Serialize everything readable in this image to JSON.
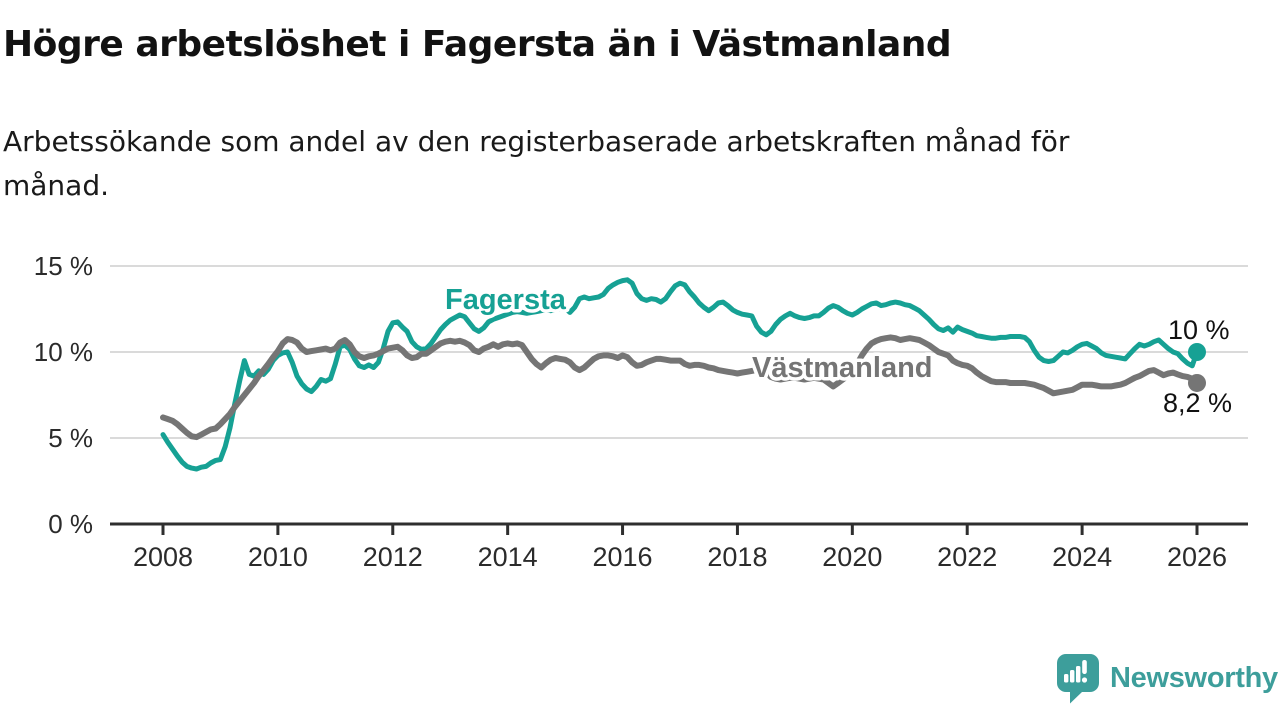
{
  "title": "Högre arbetslöshet i Fagersta än i Västmanland",
  "subtitle": {
    "line1": "Arbetssökande som andel av den registerbaserade arbetskraften månad för",
    "line2": "månad."
  },
  "footer": {
    "brand": "Newsworthy"
  },
  "colors": {
    "fagersta": "#16A194",
    "vastmanland": "#757575",
    "grid": "#DADADA",
    "axis": "#2F2F2F",
    "tick_text": "#2b2b2b",
    "logo": "#3D9E9B",
    "text": "#1a1a1a"
  },
  "chart_data": {
    "type": "line",
    "title": "Högre arbetslöshet i Fagersta än i Västmanland",
    "subtitle": "Arbetssökande som andel av den registerbaserade arbetskraften månad för månad.",
    "xlabel": "",
    "ylabel": "",
    "unit": "%",
    "x_range": [
      2008,
      2026
    ],
    "ylim": [
      0,
      15
    ],
    "grid": "horizontal",
    "legend_position": "inline-labels",
    "y_ticks": [
      {
        "value": 0,
        "label": "0 %"
      },
      {
        "value": 5,
        "label": "5 %"
      },
      {
        "value": 10,
        "label": "10 %"
      },
      {
        "value": 15,
        "label": "15 %"
      }
    ],
    "x_ticks": [
      {
        "value": 2008,
        "label": "2008"
      },
      {
        "value": 2010,
        "label": "2010"
      },
      {
        "value": 2012,
        "label": "2012"
      },
      {
        "value": 2014,
        "label": "2014"
      },
      {
        "value": 2016,
        "label": "2016"
      },
      {
        "value": 2018,
        "label": "2018"
      },
      {
        "value": 2020,
        "label": "2020"
      },
      {
        "value": 2022,
        "label": "2022"
      },
      {
        "value": 2024,
        "label": "2024"
      },
      {
        "value": 2026,
        "label": "2026"
      }
    ],
    "series": [
      {
        "name": "Fagersta",
        "color": "#16A194",
        "end_label": "10 %",
        "end_value": 10.0,
        "x_start": 2008,
        "points_per_year": 12,
        "values": [
          5.2,
          4.75,
          4.35,
          3.95,
          3.6,
          3.35,
          3.25,
          3.2,
          3.3,
          3.35,
          3.55,
          3.7,
          3.75,
          4.5,
          5.6,
          7.0,
          8.3,
          9.5,
          8.7,
          8.6,
          8.9,
          8.7,
          9.0,
          9.5,
          9.8,
          9.95,
          10.0,
          9.4,
          8.6,
          8.15,
          7.85,
          7.7,
          8.0,
          8.4,
          8.3,
          8.45,
          9.3,
          10.3,
          10.4,
          10.15,
          9.6,
          9.2,
          9.1,
          9.25,
          9.1,
          9.4,
          10.2,
          11.2,
          11.7,
          11.75,
          11.45,
          11.2,
          10.6,
          10.3,
          10.15,
          10.2,
          10.5,
          10.9,
          11.3,
          11.6,
          11.85,
          12.0,
          12.15,
          12.05,
          11.7,
          11.35,
          11.2,
          11.4,
          11.75,
          11.9,
          12.0,
          12.1,
          12.2,
          12.3,
          12.35,
          12.3,
          12.25,
          12.3,
          12.35,
          12.4,
          12.45,
          12.4,
          12.45,
          12.5,
          12.55,
          12.3,
          12.6,
          13.1,
          13.2,
          13.1,
          13.15,
          13.2,
          13.35,
          13.7,
          13.9,
          14.05,
          14.15,
          14.2,
          14.0,
          13.4,
          13.1,
          13.0,
          13.1,
          13.05,
          12.9,
          13.1,
          13.5,
          13.85,
          14.0,
          13.9,
          13.5,
          13.2,
          12.85,
          12.6,
          12.4,
          12.6,
          12.85,
          12.9,
          12.7,
          12.45,
          12.3,
          12.2,
          12.15,
          12.1,
          11.5,
          11.15,
          11.0,
          11.2,
          11.6,
          11.9,
          12.1,
          12.25,
          12.1,
          12.0,
          11.95,
          12.0,
          12.1,
          12.1,
          12.3,
          12.55,
          12.7,
          12.6,
          12.4,
          12.25,
          12.15,
          12.3,
          12.5,
          12.65,
          12.8,
          12.85,
          12.7,
          12.75,
          12.85,
          12.9,
          12.85,
          12.75,
          12.7,
          12.55,
          12.4,
          12.15,
          11.9,
          11.6,
          11.35,
          11.25,
          11.4,
          11.15,
          11.45,
          11.3,
          11.2,
          11.1,
          10.95,
          10.9,
          10.85,
          10.8,
          10.8,
          10.85,
          10.85,
          10.9,
          10.9,
          10.9,
          10.85,
          10.6,
          10.1,
          9.7,
          9.5,
          9.45,
          9.5,
          9.75,
          10.0,
          9.95,
          10.1,
          10.3,
          10.45,
          10.5,
          10.35,
          10.2,
          9.95,
          9.8,
          9.75,
          9.7,
          9.65,
          9.6,
          9.9,
          10.2,
          10.45,
          10.35,
          10.45,
          10.6,
          10.7,
          10.45,
          10.2,
          10.0,
          9.9,
          9.6,
          9.35,
          9.2,
          10.0
        ]
      },
      {
        "name": "Västmanland",
        "color": "#757575",
        "end_label": "8,2 %",
        "end_value": 8.2,
        "x_start": 2008,
        "points_per_year": 12,
        "values": [
          6.2,
          6.1,
          6.0,
          5.8,
          5.55,
          5.3,
          5.1,
          5.05,
          5.2,
          5.35,
          5.5,
          5.55,
          5.8,
          6.1,
          6.4,
          6.8,
          7.15,
          7.5,
          7.85,
          8.2,
          8.6,
          8.95,
          9.3,
          9.7,
          10.05,
          10.5,
          10.75,
          10.7,
          10.55,
          10.2,
          10.0,
          10.05,
          10.1,
          10.15,
          10.2,
          10.1,
          10.2,
          10.55,
          10.7,
          10.45,
          10.0,
          9.75,
          9.65,
          9.75,
          9.8,
          9.9,
          10.05,
          10.2,
          10.25,
          10.3,
          10.1,
          9.8,
          9.65,
          9.7,
          9.9,
          9.9,
          10.1,
          10.3,
          10.5,
          10.6,
          10.65,
          10.6,
          10.65,
          10.55,
          10.4,
          10.1,
          10.0,
          10.2,
          10.3,
          10.45,
          10.3,
          10.45,
          10.5,
          10.45,
          10.5,
          10.4,
          10.0,
          9.6,
          9.3,
          9.1,
          9.35,
          9.55,
          9.65,
          9.6,
          9.55,
          9.4,
          9.1,
          8.95,
          9.1,
          9.35,
          9.6,
          9.75,
          9.8,
          9.8,
          9.75,
          9.65,
          9.8,
          9.7,
          9.4,
          9.2,
          9.25,
          9.4,
          9.5,
          9.6,
          9.6,
          9.55,
          9.5,
          9.5,
          9.5,
          9.3,
          9.2,
          9.25,
          9.25,
          9.2,
          9.1,
          9.05,
          8.95,
          8.9,
          8.85,
          8.8,
          8.75,
          8.8,
          8.85,
          8.9,
          8.95,
          9.0,
          8.8,
          8.55,
          8.45,
          8.4,
          8.45,
          8.5,
          8.5,
          8.45,
          8.4,
          8.45,
          8.5,
          8.45,
          8.4,
          8.2,
          8.0,
          8.2,
          8.4,
          8.6,
          8.9,
          9.3,
          9.8,
          10.2,
          10.5,
          10.65,
          10.75,
          10.8,
          10.85,
          10.8,
          10.7,
          10.75,
          10.8,
          10.75,
          10.7,
          10.55,
          10.4,
          10.2,
          10.0,
          9.9,
          9.8,
          9.5,
          9.35,
          9.25,
          9.2,
          9.05,
          8.8,
          8.6,
          8.45,
          8.3,
          8.25,
          8.25,
          8.25,
          8.2,
          8.2,
          8.2,
          8.2,
          8.15,
          8.1,
          8.0,
          7.9,
          7.75,
          7.6,
          7.65,
          7.7,
          7.75,
          7.8,
          7.95,
          8.1,
          8.1,
          8.1,
          8.05,
          8.0,
          8.0,
          8.0,
          8.05,
          8.1,
          8.2,
          8.35,
          8.5,
          8.6,
          8.75,
          8.9,
          8.95,
          8.8,
          8.65,
          8.75,
          8.8,
          8.7,
          8.6,
          8.55,
          8.45,
          8.2
        ]
      }
    ]
  }
}
